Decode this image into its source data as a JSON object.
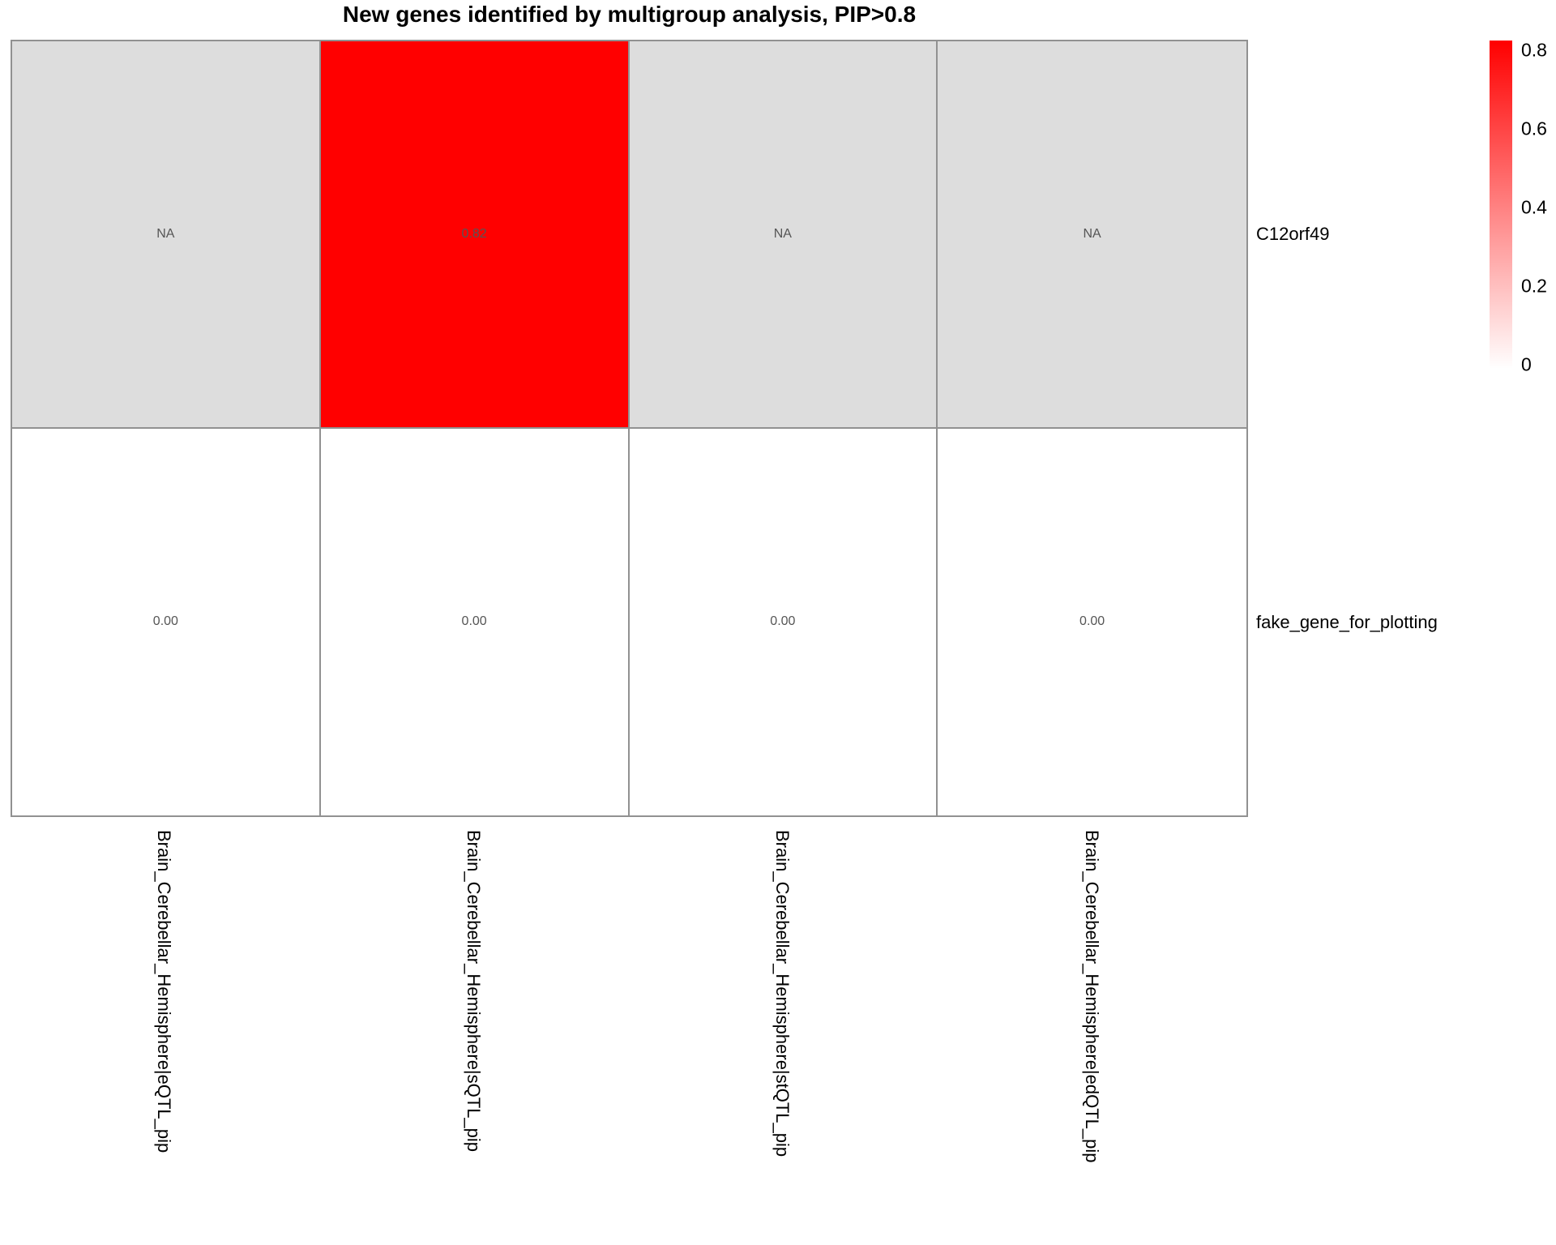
{
  "chart_data": {
    "type": "heatmap",
    "title": "New genes identified by multigroup analysis, PIP>0.8",
    "rows": [
      "C12orf49",
      "fake_gene_for_plotting"
    ],
    "columns": [
      "Brain_Cerebellar_Hemisphere|eQTL_pip",
      "Brain_Cerebellar_Hemisphere|sQTL_pip",
      "Brain_Cerebellar_Hemisphere|stQTL_pip",
      "Brain_Cerebellar_Hemisphere|edQTL_pip"
    ],
    "values": [
      [
        null,
        0.82,
        null,
        null
      ],
      [
        0,
        0,
        0,
        0
      ]
    ],
    "cell_labels": [
      [
        "NA",
        "0.82",
        "NA",
        "NA"
      ],
      [
        "0.00",
        "0.00",
        "0.00",
        "0.00"
      ]
    ],
    "colorscale": {
      "min": 0,
      "max": 0.8,
      "min_color": "#FFFFFF",
      "max_color": "#FF0000",
      "na_color": "#DDDDDD",
      "border_color": "#919191",
      "value_text_color": "#555555"
    },
    "legend": {
      "position": "right",
      "ticks": [
        "0.8",
        "0.6",
        "0.4",
        "0.2",
        "0"
      ]
    },
    "layout_hints": {
      "row_labels_position": "right",
      "column_labels_rotation": 90,
      "gridlines": "cell-borders"
    }
  }
}
